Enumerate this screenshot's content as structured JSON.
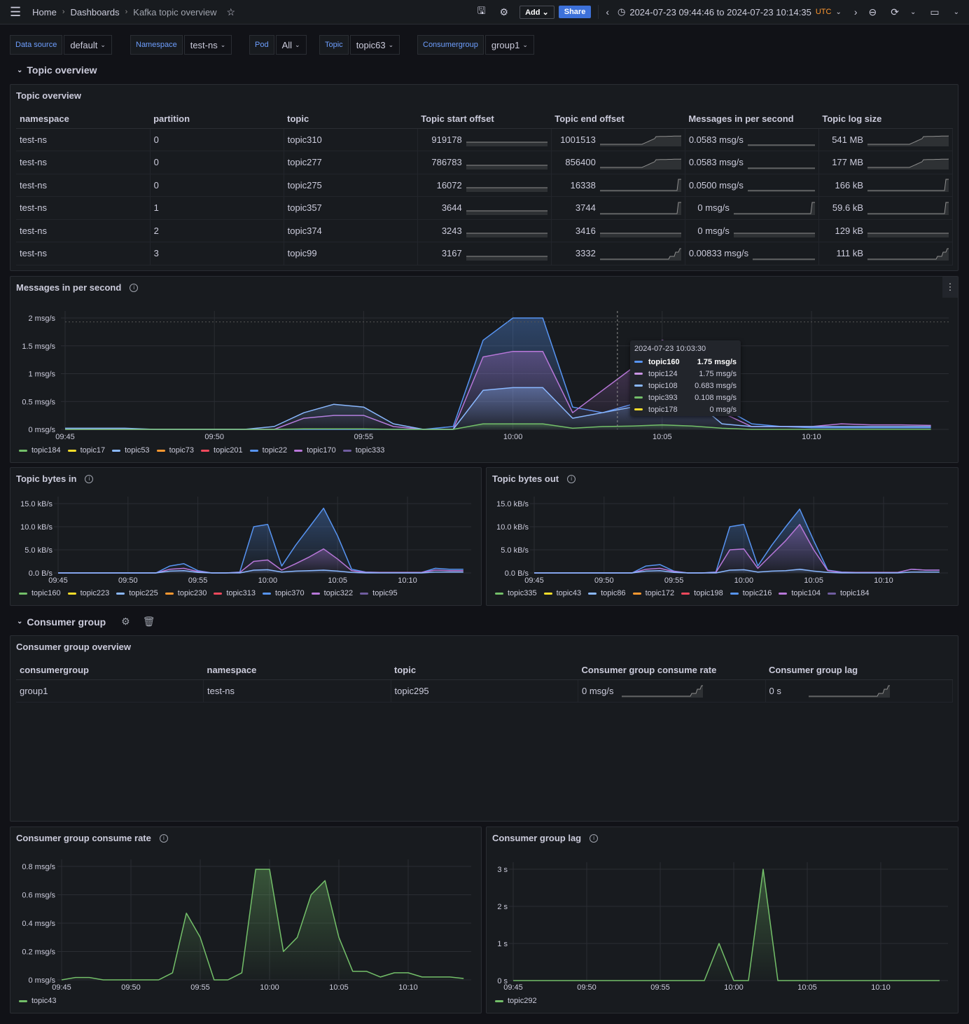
{
  "topbar": {
    "breadcrumbs": [
      "Home",
      "Dashboards",
      "Kafka topic overview"
    ],
    "add_label": "Add",
    "share_label": "Share",
    "time_range": "2024-07-23 09:44:46 to 2024-07-23 10:14:35",
    "timezone": "UTC"
  },
  "variables": [
    {
      "label": "Data source",
      "value": "default"
    },
    {
      "label": "Namespace",
      "value": "test-ns"
    },
    {
      "label": "Pod",
      "value": "All"
    },
    {
      "label": "Topic",
      "value": "topic63"
    },
    {
      "label": "Consumergroup",
      "value": "group1"
    }
  ],
  "rows": {
    "topic": "Topic overview",
    "consumer": "Consumer group"
  },
  "topic_table": {
    "title": "Topic overview",
    "columns": [
      "namespace",
      "partition",
      "topic",
      "Topic start offset",
      "Topic end offset",
      "Messages in per second",
      "Topic log size"
    ],
    "rows": [
      [
        "test-ns",
        "0",
        "topic310",
        "919178",
        "1001513",
        "0.0583 msg/s",
        "541 MB"
      ],
      [
        "test-ns",
        "0",
        "topic277",
        "786783",
        "856400",
        "0.0583 msg/s",
        "177 MB"
      ],
      [
        "test-ns",
        "0",
        "topic275",
        "16072",
        "16338",
        "0.0500 msg/s",
        "166 kB"
      ],
      [
        "test-ns",
        "1",
        "topic357",
        "3644",
        "3744",
        "0 msg/s",
        "59.6 kB"
      ],
      [
        "test-ns",
        "2",
        "topic374",
        "3243",
        "3416",
        "0 msg/s",
        "129 kB"
      ],
      [
        "test-ns",
        "3",
        "topic99",
        "3167",
        "3332",
        "0.00833 msg/s",
        "111 kB"
      ]
    ]
  },
  "consumer_table": {
    "title": "Consumer group overview",
    "columns": [
      "consumergroup",
      "namespace",
      "topic",
      "Consumer group consume rate",
      "Consumer group lag"
    ],
    "rows": [
      [
        "group1",
        "test-ns",
        "topic295",
        "0 msg/s",
        "0 s"
      ]
    ]
  },
  "tooltip": {
    "time": "2024-07-23 10:03:30",
    "rows": [
      {
        "name": "topic160",
        "value": "1.75 msg/s",
        "color": "#5794f2"
      },
      {
        "name": "topic124",
        "value": "1.75 msg/s",
        "color": "#ca95e5"
      },
      {
        "name": "topic108",
        "value": "0.683 msg/s",
        "color": "#8ab8ff"
      },
      {
        "name": "topic393",
        "value": "0.108 msg/s",
        "color": "#73bf69"
      },
      {
        "name": "topic178",
        "value": "0 msg/s",
        "color": "#fade2a"
      }
    ]
  },
  "chart_data": [
    {
      "id": "msgs",
      "title": "Messages in per second",
      "type": "line",
      "ylim": [
        0,
        2
      ],
      "yticks": [
        "0 msg/s",
        "0.5 msg/s",
        "1 msg/s",
        "1.5 msg/s",
        "2 msg/s"
      ],
      "xticks": [
        "09:45",
        "09:50",
        "09:55",
        "10:00",
        "10:05",
        "10:10"
      ],
      "x": [
        "09:45",
        "09:46",
        "09:47",
        "09:48",
        "09:49",
        "09:50",
        "09:51",
        "09:52",
        "09:53",
        "09:54",
        "09:55",
        "09:56",
        "09:57",
        "09:58",
        "09:59",
        "10:00",
        "10:01",
        "10:02",
        "10:03",
        "10:04",
        "10:05",
        "10:06",
        "10:07",
        "10:08",
        "10:09",
        "10:10",
        "10:11",
        "10:12",
        "10:13",
        "10:14"
      ],
      "legend": [
        {
          "name": "topic184",
          "color": "#73bf69"
        },
        {
          "name": "topic17",
          "color": "#fade2a"
        },
        {
          "name": "topic53",
          "color": "#8ab8ff"
        },
        {
          "name": "topic73",
          "color": "#ff9830"
        },
        {
          "name": "topic201",
          "color": "#f2495c"
        },
        {
          "name": "topic22",
          "color": "#5794f2"
        },
        {
          "name": "topic170",
          "color": "#b877d9"
        },
        {
          "name": "topic333",
          "color": "#705da0"
        }
      ],
      "series": [
        {
          "name": "topic22",
          "color": "#5794f2",
          "values": [
            0,
            0,
            0,
            0,
            0,
            0,
            0,
            0,
            0,
            0,
            0,
            0,
            0,
            0.05,
            1.6,
            2,
            2,
            0.4,
            0.3,
            0.45,
            0.55,
            0.6,
            0.4,
            0.1,
            0.05,
            0.03,
            0.03,
            0.03,
            0.03,
            0.03
          ]
        },
        {
          "name": "topic170",
          "color": "#b877d9",
          "values": [
            0,
            0,
            0,
            0,
            0,
            0,
            0,
            0,
            0.2,
            0.25,
            0.25,
            0.05,
            0,
            0,
            1.3,
            1.4,
            1.4,
            0.3,
            0.7,
            1.1,
            1.6,
            1.4,
            0.3,
            0.05,
            0.05,
            0.05,
            0.1,
            0.08,
            0.08,
            0.07
          ]
        },
        {
          "name": "topic53",
          "color": "#8ab8ff",
          "values": [
            0.02,
            0.02,
            0.02,
            0,
            0,
            0,
            0,
            0.05,
            0.3,
            0.45,
            0.4,
            0.1,
            0,
            0,
            0.7,
            0.75,
            0.75,
            0.2,
            0.3,
            0.4,
            0.5,
            0.55,
            0.1,
            0.05,
            0.05,
            0.05,
            0.05,
            0.05,
            0.05,
            0.05
          ]
        },
        {
          "name": "topic184",
          "color": "#73bf69",
          "values": [
            0,
            0,
            0,
            0,
            0,
            0,
            0,
            0,
            0.01,
            0.01,
            0.01,
            0,
            0,
            0,
            0.1,
            0.1,
            0.1,
            0.02,
            0.05,
            0.06,
            0.08,
            0.06,
            0.02,
            0,
            0,
            0,
            0,
            0,
            0,
            0
          ]
        }
      ]
    },
    {
      "id": "bin",
      "title": "Topic bytes in",
      "type": "line",
      "ylim": [
        0,
        15
      ],
      "yticks": [
        "0.0 B/s",
        "5.0 kB/s",
        "10.0 kB/s",
        "15.0 kB/s"
      ],
      "xticks": [
        "09:45",
        "09:50",
        "09:55",
        "10:00",
        "10:05",
        "10:10"
      ],
      "x": [
        "09:45",
        "09:46",
        "09:47",
        "09:48",
        "09:49",
        "09:50",
        "09:51",
        "09:52",
        "09:53",
        "09:54",
        "09:55",
        "09:56",
        "09:57",
        "09:58",
        "09:59",
        "10:00",
        "10:01",
        "10:02",
        "10:03",
        "10:04",
        "10:05",
        "10:06",
        "10:07",
        "10:08",
        "10:09",
        "10:10",
        "10:11",
        "10:12",
        "10:13",
        "10:14"
      ],
      "legend": [
        {
          "name": "topic160",
          "color": "#73bf69"
        },
        {
          "name": "topic223",
          "color": "#fade2a"
        },
        {
          "name": "topic225",
          "color": "#8ab8ff"
        },
        {
          "name": "topic230",
          "color": "#ff9830"
        },
        {
          "name": "topic313",
          "color": "#f2495c"
        },
        {
          "name": "topic370",
          "color": "#5794f2"
        },
        {
          "name": "topic322",
          "color": "#b877d9"
        },
        {
          "name": "topic95",
          "color": "#705da0"
        }
      ],
      "series": [
        {
          "name": "topic370",
          "color": "#5794f2",
          "values": [
            0,
            0,
            0,
            0,
            0,
            0,
            0,
            0,
            1.5,
            2,
            0.5,
            0,
            0,
            0.2,
            10,
            10.5,
            1.5,
            6,
            10,
            14,
            8,
            0.8,
            0.2,
            0.1,
            0.1,
            0.1,
            0.1,
            1,
            0.8,
            0.8
          ]
        },
        {
          "name": "topic322",
          "color": "#b877d9",
          "values": [
            0,
            0,
            0,
            0,
            0,
            0,
            0,
            0,
            0.8,
            1,
            0.3,
            0,
            0,
            0.1,
            2.5,
            2.8,
            0.6,
            2,
            3.5,
            5.2,
            3,
            0.5,
            0.1,
            0.1,
            0.1,
            0.1,
            0.1,
            0.6,
            0.5,
            0.5
          ]
        },
        {
          "name": "topic225",
          "color": "#8ab8ff",
          "values": [
            0,
            0,
            0,
            0,
            0,
            0,
            0,
            0,
            0.4,
            0.5,
            0.1,
            0,
            0,
            0,
            0.6,
            0.7,
            0.2,
            0.4,
            0.5,
            0.6,
            0.4,
            0.1,
            0,
            0,
            0,
            0,
            0,
            0.2,
            0.2,
            0.2
          ]
        }
      ]
    },
    {
      "id": "bout",
      "title": "Topic bytes out",
      "type": "line",
      "ylim": [
        0,
        15
      ],
      "yticks": [
        "0.0 B/s",
        "5.0 kB/s",
        "10.0 kB/s",
        "15.0 kB/s"
      ],
      "xticks": [
        "09:45",
        "09:50",
        "09:55",
        "10:00",
        "10:05",
        "10:10"
      ],
      "x": [
        "09:45",
        "09:46",
        "09:47",
        "09:48",
        "09:49",
        "09:50",
        "09:51",
        "09:52",
        "09:53",
        "09:54",
        "09:55",
        "09:56",
        "09:57",
        "09:58",
        "09:59",
        "10:00",
        "10:01",
        "10:02",
        "10:03",
        "10:04",
        "10:05",
        "10:06",
        "10:07",
        "10:08",
        "10:09",
        "10:10",
        "10:11",
        "10:12",
        "10:13",
        "10:14"
      ],
      "legend": [
        {
          "name": "topic335",
          "color": "#73bf69"
        },
        {
          "name": "topic43",
          "color": "#fade2a"
        },
        {
          "name": "topic86",
          "color": "#8ab8ff"
        },
        {
          "name": "topic172",
          "color": "#ff9830"
        },
        {
          "name": "topic198",
          "color": "#f2495c"
        },
        {
          "name": "topic216",
          "color": "#5794f2"
        },
        {
          "name": "topic104",
          "color": "#b877d9"
        },
        {
          "name": "topic184",
          "color": "#705da0"
        }
      ],
      "series": [
        {
          "name": "topic216",
          "color": "#5794f2",
          "values": [
            0,
            0,
            0,
            0,
            0,
            0,
            0,
            0,
            1.5,
            1.8,
            0.4,
            0,
            0,
            0.2,
            10,
            10.5,
            1.5,
            6,
            10,
            13.8,
            7,
            0.6,
            0.2,
            0.1,
            0.1,
            0.1,
            0.1,
            0.8,
            0.6,
            0.6
          ]
        },
        {
          "name": "topic104",
          "color": "#b877d9",
          "values": [
            0,
            0,
            0,
            0,
            0,
            0,
            0,
            0,
            0.8,
            1,
            0.3,
            0,
            0,
            0.1,
            5,
            5.2,
            1,
            4,
            7,
            10.5,
            5,
            0.5,
            0.1,
            0.1,
            0.1,
            0.1,
            0.1,
            0.8,
            0.6,
            0.6
          ]
        },
        {
          "name": "topic86",
          "color": "#8ab8ff",
          "values": [
            0,
            0,
            0,
            0,
            0,
            0,
            0,
            0,
            0.4,
            0.5,
            0.1,
            0,
            0,
            0,
            0.6,
            0.7,
            0.2,
            0.4,
            0.5,
            0.8,
            0.4,
            0.1,
            0,
            0,
            0,
            0,
            0,
            0.2,
            0.2,
            0.2
          ]
        }
      ]
    },
    {
      "id": "rate",
      "title": "Consumer group consume rate",
      "type": "line",
      "ylim": [
        0,
        0.8
      ],
      "yticks": [
        "0 msg/s",
        "0.2 msg/s",
        "0.4 msg/s",
        "0.6 msg/s",
        "0.8 msg/s"
      ],
      "xticks": [
        "09:45",
        "09:50",
        "09:55",
        "10:00",
        "10:05",
        "10:10"
      ],
      "x": [
        "09:45",
        "09:46",
        "09:47",
        "09:48",
        "09:49",
        "09:50",
        "09:51",
        "09:52",
        "09:53",
        "09:54",
        "09:55",
        "09:56",
        "09:57",
        "09:58",
        "09:59",
        "10:00",
        "10:01",
        "10:02",
        "10:03",
        "10:04",
        "10:05",
        "10:06",
        "10:07",
        "10:08",
        "10:09",
        "10:10",
        "10:11",
        "10:12",
        "10:13",
        "10:14"
      ],
      "legend": [
        {
          "name": "topic43",
          "color": "#73bf69"
        }
      ],
      "series": [
        {
          "name": "topic43",
          "color": "#73bf69",
          "values": [
            0,
            0.017,
            0.017,
            0,
            0,
            0,
            0,
            0,
            0.05,
            0.47,
            0.3,
            0,
            0,
            0.05,
            0.78,
            0.78,
            0.2,
            0.3,
            0.6,
            0.7,
            0.3,
            0.06,
            0.06,
            0.02,
            0.05,
            0.05,
            0.02,
            0.02,
            0.02,
            0.01
          ]
        }
      ]
    },
    {
      "id": "lag",
      "title": "Consumer group lag",
      "type": "line",
      "ylim": [
        0,
        3
      ],
      "yticks": [
        "0 s",
        "1 s",
        "2 s",
        "3 s"
      ],
      "xticks": [
        "09:45",
        "09:50",
        "09:55",
        "10:00",
        "10:05",
        "10:10"
      ],
      "x": [
        "09:45",
        "09:46",
        "09:47",
        "09:48",
        "09:49",
        "09:50",
        "09:51",
        "09:52",
        "09:53",
        "09:54",
        "09:55",
        "09:56",
        "09:57",
        "09:58",
        "09:59",
        "10:00",
        "10:01",
        "10:02",
        "10:03",
        "10:04",
        "10:05",
        "10:06",
        "10:07",
        "10:08",
        "10:09",
        "10:10",
        "10:11",
        "10:12",
        "10:13",
        "10:14"
      ],
      "legend": [
        {
          "name": "topic292",
          "color": "#73bf69"
        }
      ],
      "series": [
        {
          "name": "topic292",
          "color": "#73bf69",
          "values": [
            0,
            0,
            0,
            0,
            0,
            0,
            0,
            0,
            0,
            0,
            0,
            0,
            0,
            0,
            1,
            0,
            0,
            3,
            0,
            0,
            0,
            0,
            0,
            0,
            0,
            0,
            0,
            0,
            0,
            0
          ]
        }
      ]
    }
  ]
}
